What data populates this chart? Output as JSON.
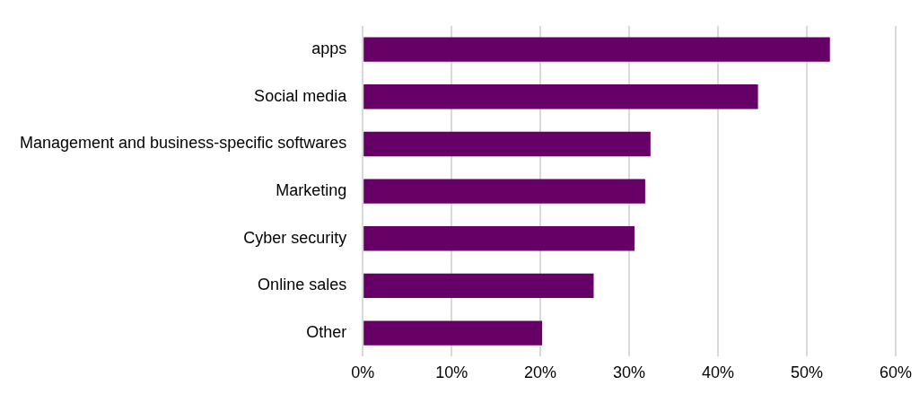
{
  "chart_data": {
    "type": "bar",
    "orientation": "horizontal",
    "categories": [
      "apps",
      "Social media",
      "Management and business-specific softwares",
      "Marketing",
      "Cyber security",
      "Online sales",
      "Other"
    ],
    "values": [
      52.6,
      44.5,
      32.4,
      31.8,
      30.6,
      26.0,
      20.2
    ],
    "color": "#660066",
    "xlim": [
      0,
      60
    ],
    "xticks": [
      {
        "value": 0,
        "label": "0%"
      },
      {
        "value": 10,
        "label": "10%"
      },
      {
        "value": 20,
        "label": "20%"
      },
      {
        "value": 30,
        "label": "30%"
      },
      {
        "value": 40,
        "label": "40%"
      },
      {
        "value": 50,
        "label": "50%"
      },
      {
        "value": 60,
        "label": "60%"
      }
    ],
    "grid": "x",
    "legend": false
  }
}
